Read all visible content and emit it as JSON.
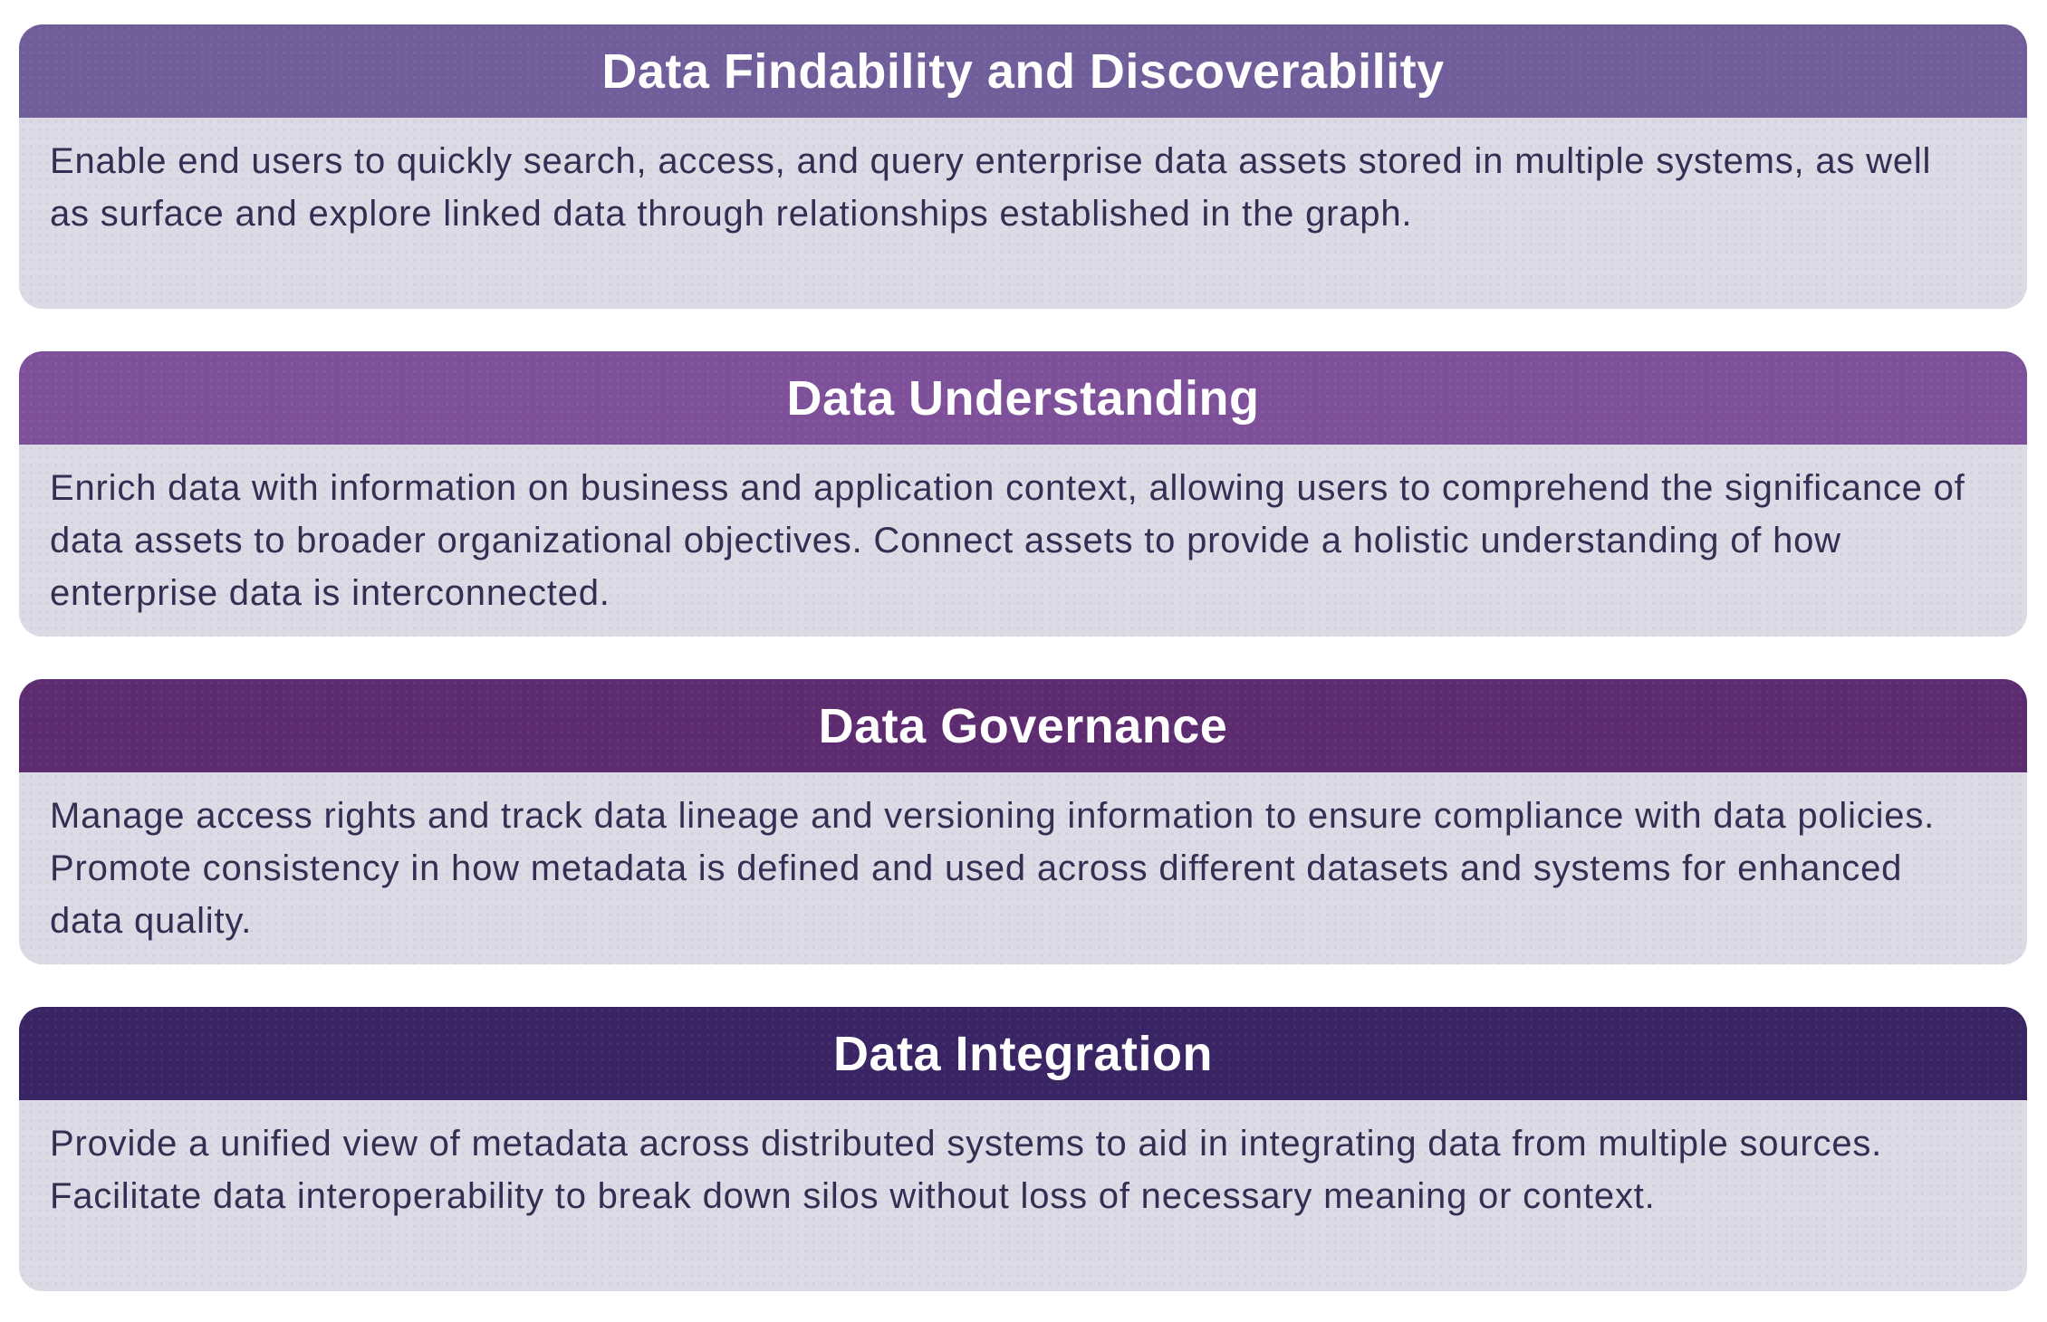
{
  "colors": {
    "page_background": "#ffffff",
    "body_background": "#dcdae4",
    "body_text": "#352e52",
    "title_text": "#ffffff"
  },
  "cards": [
    {
      "title": "Data Findability and Discoverability",
      "header_color": "#6f5e99",
      "description": "Enable end users to quickly search, access, and query enterprise data assets stored in multiple systems, as well as surface and explore linked data through relationships established in the graph."
    },
    {
      "title": "Data Understanding",
      "header_color": "#7e5099",
      "description": "Enrich data with information on business and application context, allowing users to comprehend the significance of data assets to broader organizational objectives. Connect assets to provide a holistic understanding of how enterprise data is interconnected."
    },
    {
      "title": "Data Governance",
      "header_color": "#5d2b70",
      "description": "Manage access rights and track data lineage and versioning information to ensure compliance with data policies. Promote consistency in how metadata is defined and used across different datasets and systems for enhanced data quality."
    },
    {
      "title": "Data Integration",
      "header_color": "#392563",
      "description": "Provide a unified view of metadata across distributed systems to aid in integrating data from multiple sources. Facilitate data interoperability to break down silos without loss of necessary meaning or context."
    }
  ]
}
